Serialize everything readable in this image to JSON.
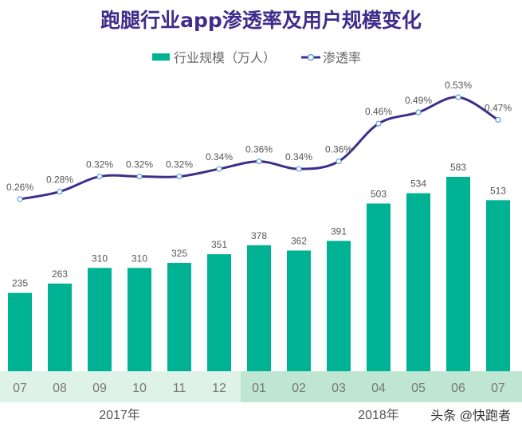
{
  "title": "跑腿行业app渗透率及用户规模变化",
  "watermark": "头条 @快跑者",
  "chart_data": {
    "type": "bar+line",
    "title": "跑腿行业app渗透率及用户规模变化",
    "categories": [
      "07",
      "08",
      "09",
      "10",
      "11",
      "12",
      "01",
      "02",
      "03",
      "04",
      "05",
      "06",
      "07"
    ],
    "year_groups": [
      {
        "label": "2017年",
        "count": 6
      },
      {
        "label": "2018年",
        "count": 7
      }
    ],
    "legend_position": "top",
    "grid": false,
    "series": [
      {
        "name": "行业规模（万人）",
        "type": "bar",
        "color": "#00b294",
        "values": [
          235,
          263,
          310,
          310,
          325,
          351,
          378,
          362,
          391,
          503,
          534,
          583,
          513
        ]
      },
      {
        "name": "渗透率",
        "type": "line",
        "color": "#3f2d8c",
        "unit": "%",
        "values": [
          0.26,
          0.28,
          0.32,
          0.32,
          0.32,
          0.34,
          0.36,
          0.34,
          0.36,
          0.46,
          0.49,
          0.53,
          0.47
        ]
      }
    ],
    "band_colors": [
      "#dff2e8",
      "#bfe6d2"
    ]
  }
}
